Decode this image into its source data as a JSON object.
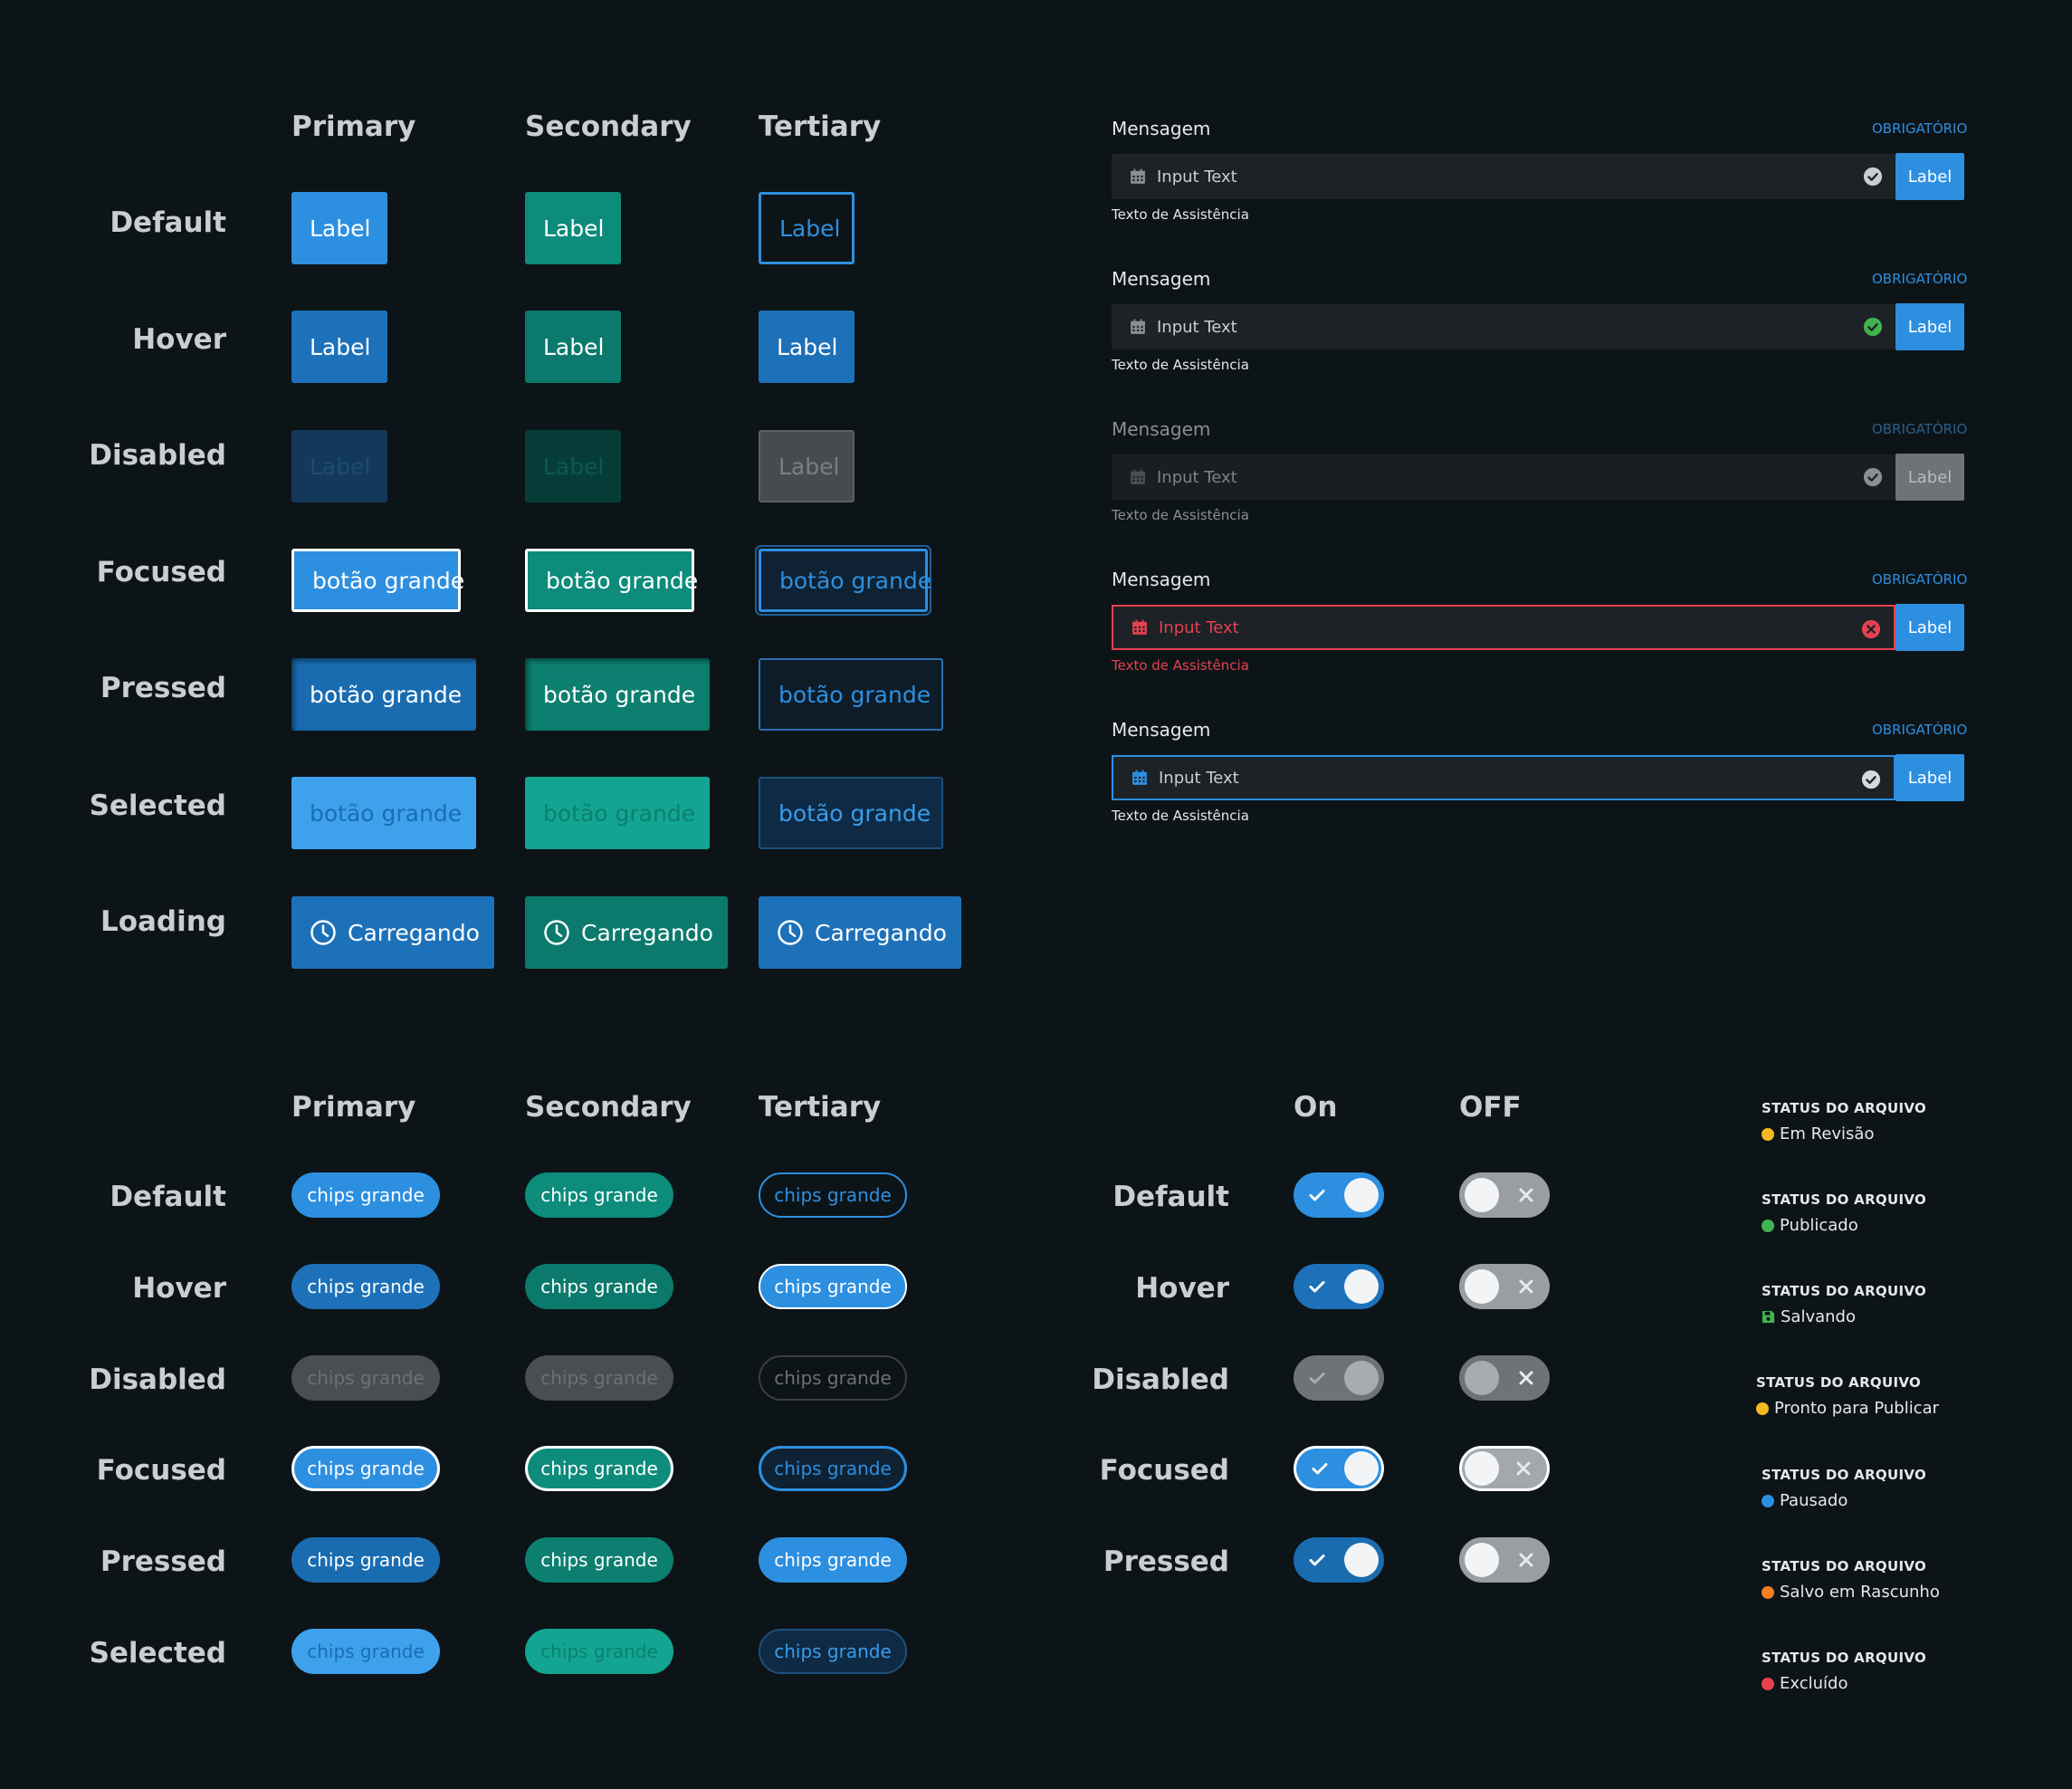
{
  "buttons": {
    "columns": [
      "Primary",
      "Secondary",
      "Tertiary"
    ],
    "rows": [
      "Default",
      "Hover",
      "Disabled",
      "Focused",
      "Pressed",
      "Selected",
      "Loading"
    ],
    "label": "Label",
    "large_label": "botão grande",
    "loading_label": "Carregando",
    "loading_icon": "clock-icon"
  },
  "chips": {
    "columns": [
      "Primary",
      "Secondary",
      "Tertiary"
    ],
    "rows": [
      "Default",
      "Hover",
      "Disabled",
      "Focused",
      "Pressed",
      "Selected"
    ],
    "label": "chips grande"
  },
  "toggles": {
    "columns": [
      "On",
      "OFF"
    ],
    "rows": [
      "Default",
      "Hover",
      "Disabled",
      "Focused",
      "Pressed"
    ],
    "on_icon": "check-icon",
    "off_icon": "x-icon"
  },
  "fields": [
    {
      "state": "default",
      "label": "Mensagem",
      "required": "OBRIGATÓRIO",
      "placeholder": "Input Text",
      "button": "Label",
      "help": "Texto de Assistência",
      "status_icon": "check-circle-icon",
      "status_color": "#c9ced2"
    },
    {
      "state": "valid",
      "label": "Mensagem",
      "required": "OBRIGATÓRIO",
      "placeholder": "Input Text",
      "button": "Label",
      "help": "Texto de Assistência",
      "status_icon": "check-circle-icon",
      "status_color": "#3fb34f"
    },
    {
      "state": "disabled",
      "label": "Mensagem",
      "required": "OBRIGATÓRIO",
      "placeholder": "Input Text",
      "button": "Label",
      "help": "Texto de Assistência",
      "status_icon": "check-circle-icon",
      "status_color": "#8a8f93"
    },
    {
      "state": "error",
      "label": "Mensagem",
      "required": "OBRIGATÓRIO",
      "placeholder": "Input Text",
      "button": "Label",
      "help": "Texto de Assistência",
      "status_icon": "x-circle-icon",
      "status_color": "#e5414f"
    },
    {
      "state": "focused",
      "label": "Mensagem",
      "required": "OBRIGATÓRIO",
      "placeholder": "Input Text",
      "button": "Label",
      "help": "Texto de Assistência",
      "status_icon": "check-circle-icon",
      "status_color": "#d6d9dc"
    }
  ],
  "file_status": [
    {
      "title": "STATUS DO ARQUIVO",
      "value": "Em Revisão",
      "color": "#f5b922",
      "icon": "dot"
    },
    {
      "title": "STATUS DO ARQUIVO",
      "value": "Publicado",
      "color": "#3fb34f",
      "icon": "dot"
    },
    {
      "title": "STATUS DO ARQUIVO",
      "value": "Salvando",
      "color": "#3fb34f",
      "icon": "save-icon"
    },
    {
      "title": "STATUS DO ARQUIVO",
      "value": "Pronto para Publicar",
      "color": "#f5b922",
      "icon": "dot"
    },
    {
      "title": "STATUS DO ARQUIVO",
      "value": "Pausado",
      "color": "#2d8fe0",
      "icon": "dot"
    },
    {
      "title": "STATUS DO ARQUIVO",
      "value": "Salvo em Rascunho",
      "color": "#f07f22",
      "icon": "dot"
    },
    {
      "title": "STATUS DO ARQUIVO",
      "value": "Excluído",
      "color": "#e5414f",
      "icon": "dot"
    }
  ],
  "colors": {
    "background": "#0d1417",
    "primary": "#2d8fe0",
    "secondary": "#0d8b7b",
    "error": "#e5414f",
    "success": "#3fb34f"
  }
}
